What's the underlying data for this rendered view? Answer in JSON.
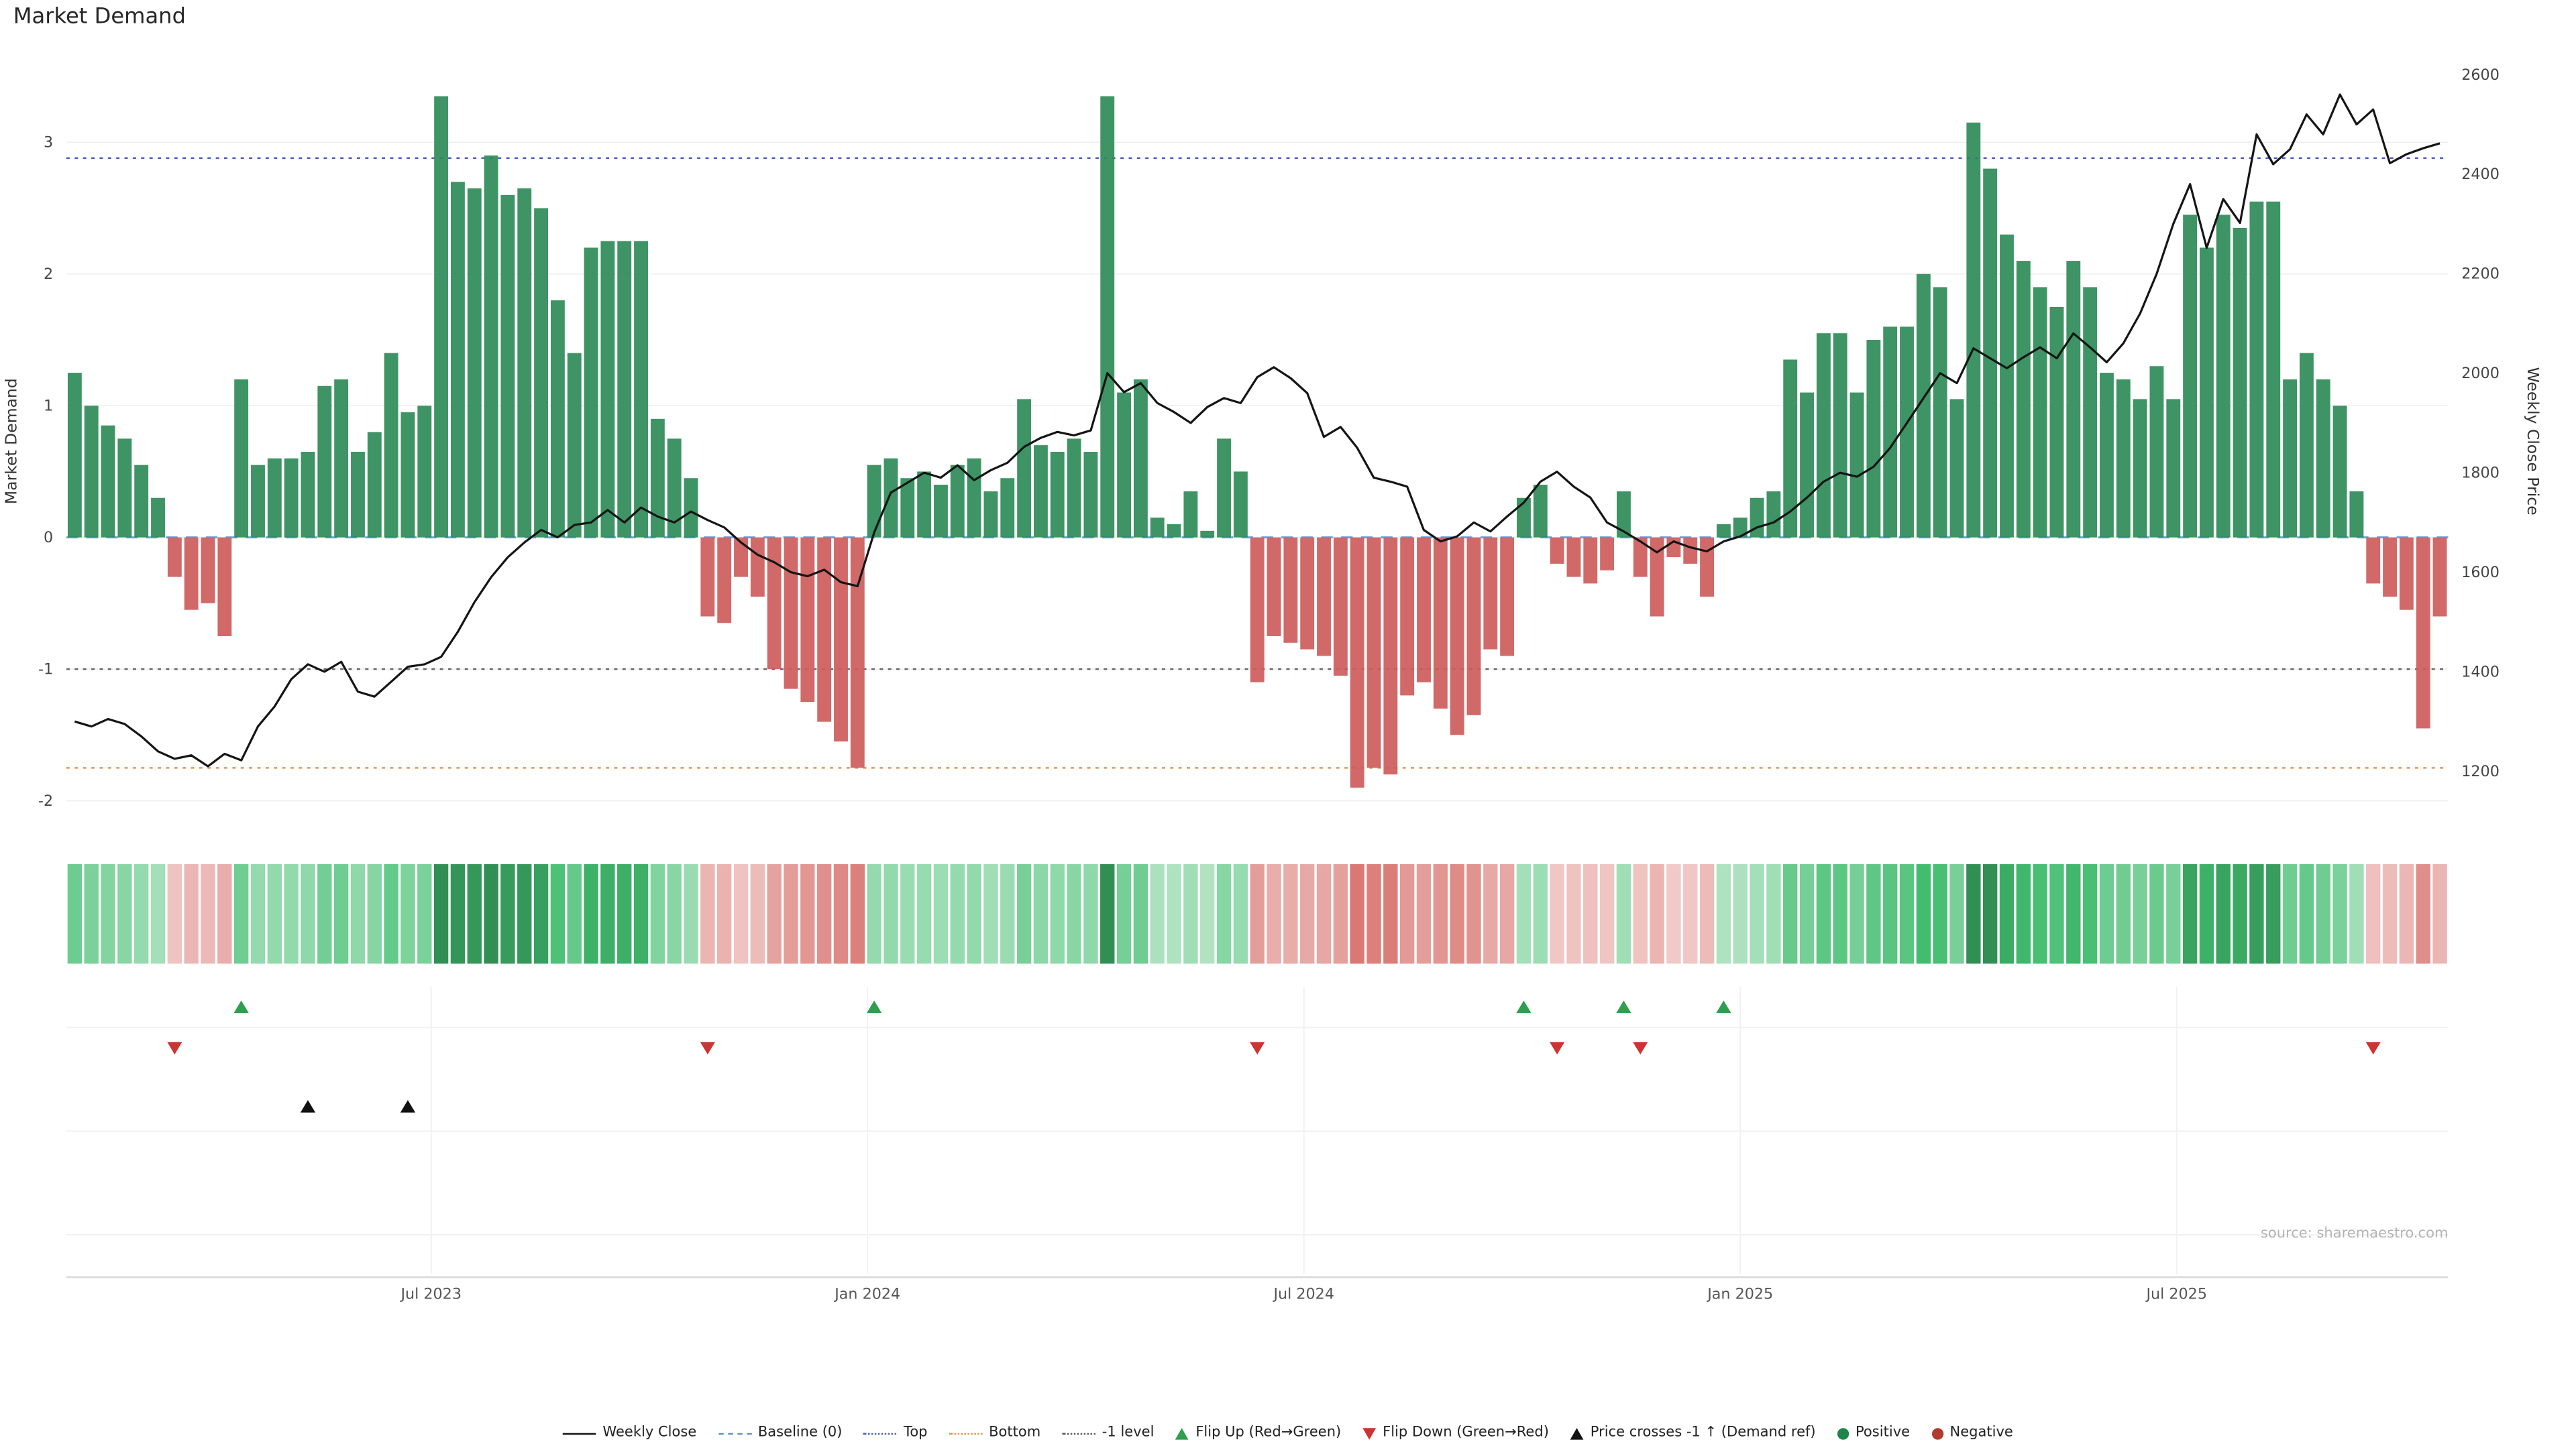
{
  "title": "Market Demand",
  "source_note": "source: sharemaestro.com",
  "colors": {
    "positive_bar": "#2e8b57",
    "negative_bar": "#cd5c5c",
    "price_line": "#151515",
    "baseline_line": "#6f9fd8",
    "top_line": "#4a5ab9",
    "bottom_line": "#e8913d",
    "minus_one_line": "#666666",
    "flip_up_marker": "#2e9e4f",
    "flip_down_marker": "#cc3333",
    "price_cross_marker": "#111111",
    "grid": "#efefef",
    "axis_text": "#444444"
  },
  "chart_data": {
    "type": "bar+line",
    "title": "Market Demand",
    "ylabel_left": "Market Demand",
    "ylabel_right": "Weekly Close Price",
    "ylim_left": [
      -2.1,
      3.65
    ],
    "ylim_right": [
      1150,
      2650
    ],
    "yticks_left": [
      -2,
      -1,
      0,
      1,
      2,
      3
    ],
    "yticks_right": [
      1200,
      1400,
      1600,
      1800,
      2000,
      2200,
      2400,
      2600
    ],
    "xticks": [
      {
        "label": "Jul 2023",
        "index": 21.4
      },
      {
        "label": "Jan 2024",
        "index": 47.6
      },
      {
        "label": "Jul 2024",
        "index": 73.8
      },
      {
        "label": "Jan 2025",
        "index": 100.0
      },
      {
        "label": "Jul 2025",
        "index": 126.2
      }
    ],
    "levels": {
      "baseline": 0,
      "top": 2.88,
      "bottom": -1.75,
      "minus_one": -1
    },
    "n_weeks": 143,
    "series": [
      {
        "name": "Market Demand",
        "type": "bar",
        "values": [
          1.25,
          1.0,
          0.85,
          0.75,
          0.55,
          0.3,
          -0.3,
          -0.55,
          -0.5,
          -0.75,
          1.2,
          0.55,
          0.6,
          0.6,
          0.65,
          1.15,
          1.2,
          0.65,
          0.8,
          1.4,
          0.95,
          1.0,
          3.35,
          2.7,
          2.65,
          2.9,
          2.6,
          2.65,
          2.5,
          1.8,
          1.4,
          2.2,
          2.25,
          2.25,
          2.25,
          0.9,
          0.75,
          0.45,
          -0.6,
          -0.65,
          -0.3,
          -0.45,
          -1.0,
          -1.15,
          -1.25,
          -1.4,
          -1.55,
          -1.75,
          0.55,
          0.6,
          0.45,
          0.5,
          0.4,
          0.55,
          0.6,
          0.35,
          0.45,
          1.05,
          0.7,
          0.65,
          0.75,
          0.65,
          3.35,
          1.1,
          1.2,
          0.15,
          0.1,
          0.35,
          0.05,
          0.75,
          0.5,
          -1.1,
          -0.75,
          -0.8,
          -0.85,
          -0.9,
          -1.05,
          -1.9,
          -1.75,
          -1.8,
          -1.2,
          -1.1,
          -1.3,
          -1.5,
          -1.35,
          -0.85,
          -0.9,
          0.3,
          0.4,
          -0.2,
          -0.3,
          -0.35,
          -0.25,
          0.35,
          -0.3,
          -0.6,
          -0.15,
          -0.2,
          -0.45,
          0.1,
          0.15,
          0.3,
          0.35,
          1.35,
          1.1,
          1.55,
          1.55,
          1.1,
          1.5,
          1.6,
          1.6,
          2.0,
          1.9,
          1.05,
          3.15,
          2.8,
          2.3,
          2.1,
          1.9,
          1.75,
          2.1,
          1.9,
          1.25,
          1.2,
          1.05,
          1.3,
          1.05,
          2.45,
          2.2,
          2.45,
          2.35,
          2.55,
          2.55,
          1.2,
          1.4,
          1.2,
          1.0,
          0.35,
          -0.35,
          -0.45,
          -0.55,
          -1.45,
          -0.6
        ]
      },
      {
        "name": "Weekly Close",
        "type": "line",
        "values": [
          1300,
          1290,
          1305,
          1295,
          1270,
          1240,
          1225,
          1232,
          1210,
          1235,
          1222,
          1290,
          1330,
          1385,
          1415,
          1400,
          1420,
          1360,
          1350,
          1380,
          1410,
          1415,
          1430,
          1480,
          1540,
          1590,
          1630,
          1660,
          1685,
          1670,
          1695,
          1700,
          1725,
          1700,
          1730,
          1712,
          1700,
          1722,
          1705,
          1690,
          1660,
          1635,
          1620,
          1600,
          1592,
          1605,
          1580,
          1572,
          1680,
          1760,
          1780,
          1800,
          1790,
          1815,
          1785,
          1805,
          1820,
          1852,
          1870,
          1882,
          1875,
          1885,
          2000,
          1962,
          1980,
          1940,
          1922,
          1900,
          1932,
          1950,
          1940,
          1992,
          2012,
          1990,
          1960,
          1872,
          1892,
          1850,
          1790,
          1782,
          1772,
          1685,
          1662,
          1672,
          1700,
          1682,
          1712,
          1740,
          1782,
          1802,
          1772,
          1750,
          1700,
          1682,
          1662,
          1640,
          1662,
          1650,
          1642,
          1662,
          1672,
          1690,
          1700,
          1722,
          1750,
          1782,
          1800,
          1792,
          1812,
          1850,
          1900,
          1950,
          2000,
          1980,
          2050,
          2030,
          2010,
          2032,
          2052,
          2030,
          2080,
          2052,
          2022,
          2060,
          2120,
          2200,
          2300,
          2380,
          2252,
          2350,
          2302,
          2480,
          2420,
          2450,
          2520,
          2480,
          2560,
          2500,
          2530,
          2422,
          2440,
          2452,
          2462
        ]
      }
    ],
    "markers": {
      "flip_up": [
        10,
        48,
        87,
        93,
        99
      ],
      "flip_down": [
        6,
        38,
        71,
        89,
        94,
        138
      ],
      "price_cross": [
        14,
        20
      ]
    }
  },
  "legend": [
    {
      "label": "Weekly Close",
      "swatch": "line",
      "color": "#111111"
    },
    {
      "label": "Baseline (0)",
      "swatch": "dash",
      "color": "#5b8ecb"
    },
    {
      "label": "Top",
      "swatch": "dot",
      "color": "#4a5ab9"
    },
    {
      "label": "Bottom",
      "swatch": "dot",
      "color": "#e8913d"
    },
    {
      "label": "-1 level",
      "swatch": "dot",
      "color": "#555555"
    },
    {
      "label": "Flip Up (Red→Green)",
      "swatch": "tri-up",
      "color": "#2e9e4f"
    },
    {
      "label": "Flip Down (Green→Red)",
      "swatch": "tri-down",
      "color": "#cc3333"
    },
    {
      "label": "Price crosses -1 ↑ (Demand ref)",
      "swatch": "tri-up",
      "color": "#111111"
    },
    {
      "label": "Positive",
      "swatch": "circle",
      "color": "#1e8449"
    },
    {
      "label": "Negative",
      "swatch": "circle",
      "color": "#b03a2e"
    }
  ]
}
